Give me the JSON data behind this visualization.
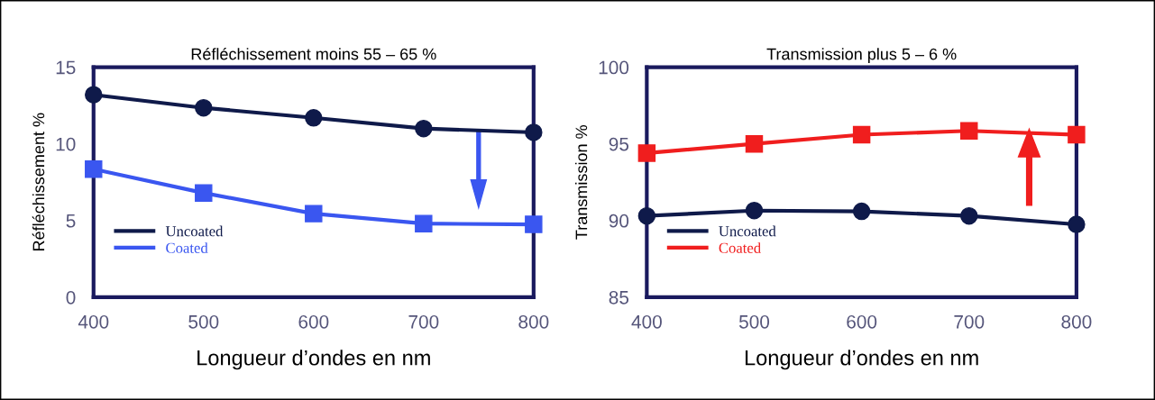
{
  "chart_data": [
    {
      "type": "line",
      "title": "Réfléchissement moins 55 – 65 %",
      "xlabel": "Longueur d’ondes en nm",
      "ylabel": "Réfléchissement %",
      "x": [
        400,
        500,
        600,
        700,
        800
      ],
      "series": [
        {
          "name": "Uncoated",
          "color": "#0f1a4a",
          "marker": "circle",
          "values": [
            13.2,
            12.35,
            11.7,
            11.0,
            10.75
          ]
        },
        {
          "name": "Coated",
          "color": "#3a56f0",
          "marker": "square",
          "values": [
            8.35,
            6.8,
            5.45,
            4.8,
            4.75
          ]
        }
      ],
      "xlim": [
        400,
        800
      ],
      "xticks": [
        400,
        500,
        600,
        700,
        800
      ],
      "ylim": [
        0,
        15
      ],
      "yticks": [
        0,
        5,
        10,
        15
      ],
      "grid": false,
      "legend": "bottom left",
      "line_style": "solid"
    },
    {
      "type": "line",
      "title": "Transmission plus 5 – 6 %",
      "xlabel": "Longueur d’ondes en nm",
      "ylabel": "Transmission %",
      "x": [
        400,
        500,
        600,
        700,
        800
      ],
      "series": [
        {
          "name": "Uncoated",
          "color": "#0f1a4a",
          "marker": "circle",
          "values": [
            90.3,
            90.65,
            90.6,
            90.3,
            89.75
          ]
        },
        {
          "name": "Coated",
          "color": "#f01e1e",
          "marker": "square",
          "values": [
            94.4,
            95.0,
            95.6,
            95.85,
            95.6
          ]
        }
      ],
      "xlim": [
        400,
        800
      ],
      "xticks": [
        400,
        500,
        600,
        700,
        800
      ],
      "ylim": [
        85,
        100
      ],
      "yticks": [
        85,
        90,
        95,
        100
      ],
      "grid": false,
      "legend": "bottom left",
      "line_style": "solid"
    }
  ]
}
